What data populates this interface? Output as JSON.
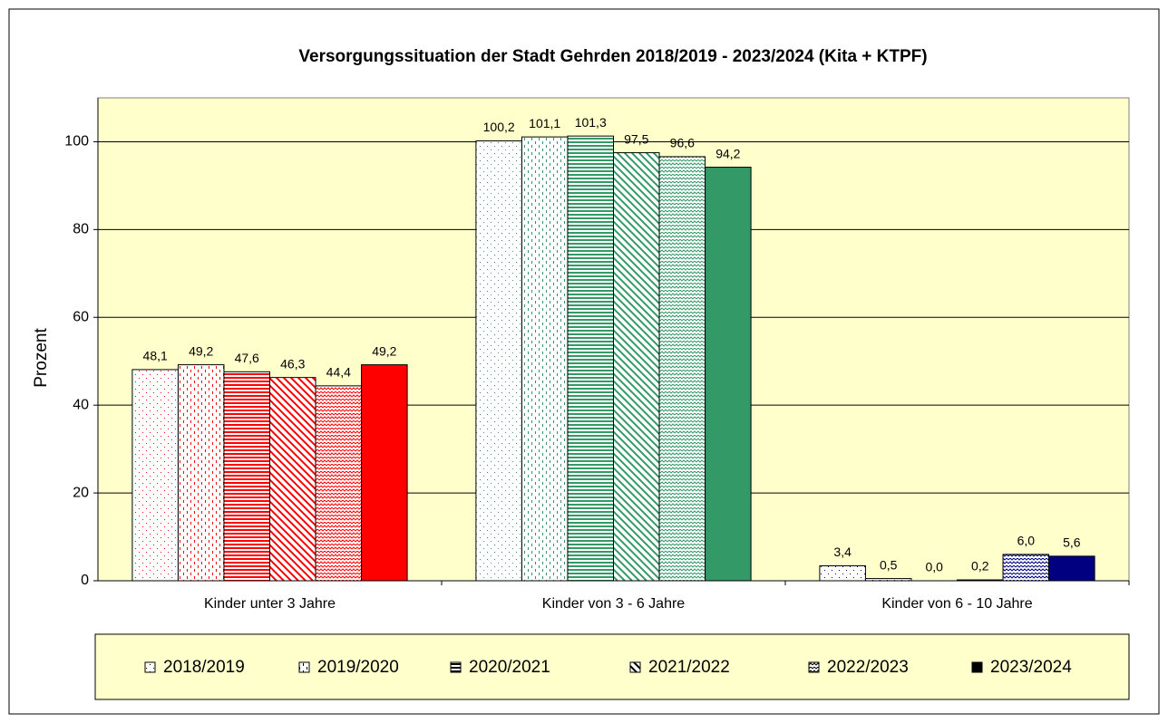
{
  "chart_data": {
    "type": "bar",
    "title": "Versorgungssituation der Stadt Gehrden 2018/2019 - 2023/2024 (Kita + KTPF)",
    "y_label": "Prozent",
    "categories": [
      "Kinder unter 3 Jahre",
      "Kinder von 3 - 6 Jahre",
      "Kinder von 6 - 10 Jahre"
    ],
    "category_colors": [
      "#ff0000",
      "#339966",
      "#000080"
    ],
    "series": [
      {
        "name": "2018/2019",
        "values": [
          48.1,
          100.2,
          3.4
        ],
        "value_labels": [
          "48,1",
          "100,2",
          "3,4"
        ]
      },
      {
        "name": "2019/2020",
        "values": [
          49.2,
          101.1,
          0.5
        ],
        "value_labels": [
          "49,2",
          "101,1",
          "0,5"
        ]
      },
      {
        "name": "2020/2021",
        "values": [
          47.6,
          101.3,
          0.0
        ],
        "value_labels": [
          "47,6",
          "101,3",
          "0,0"
        ]
      },
      {
        "name": "2021/2022",
        "values": [
          46.3,
          97.5,
          0.2
        ],
        "value_labels": [
          "46,3",
          "97,5",
          "0,2"
        ]
      },
      {
        "name": "2022/2023",
        "values": [
          44.4,
          96.6,
          6.0
        ],
        "value_labels": [
          "44,4",
          "96,6",
          "6,0"
        ]
      },
      {
        "name": "2023/2024",
        "values": [
          49.2,
          94.2,
          5.6
        ],
        "value_labels": [
          "49,2",
          "94,2",
          "5,6"
        ]
      }
    ],
    "ylim": [
      0,
      110
    ],
    "yticks": [
      0,
      20,
      40,
      60,
      80,
      100
    ],
    "grid": true,
    "legend": "bottom",
    "plot_background": "#ffffcc"
  }
}
